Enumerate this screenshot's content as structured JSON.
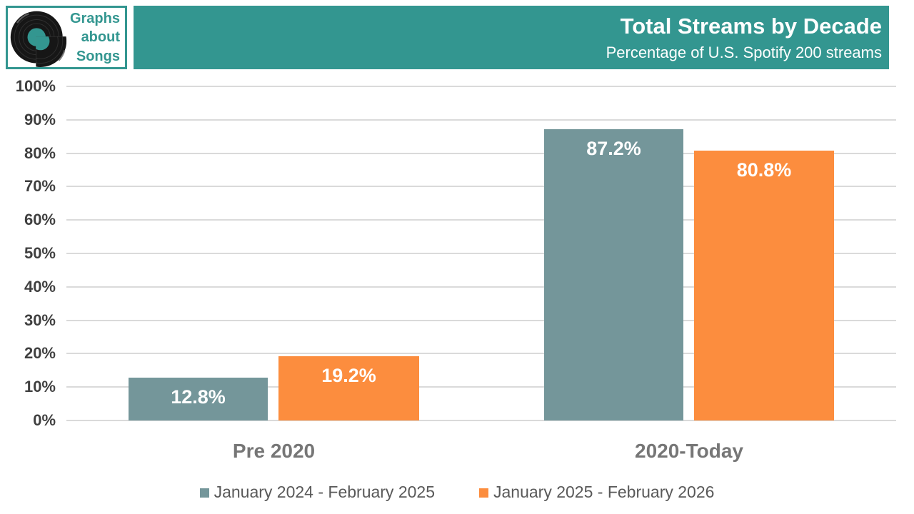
{
  "logo": {
    "line1": "Graphs",
    "line2": "about",
    "line3": "Songs"
  },
  "header": {
    "title": "Total Streams by Decade",
    "subtitle": "Percentage of U.S. Spotify 200 streams"
  },
  "colors": {
    "teal": "#339690",
    "slate": "#74969A",
    "orange": "#FC8D3E",
    "grid": "#DADADA",
    "vinyl_black": "#161616",
    "value_label": "#FFFFFF"
  },
  "chart_data": {
    "type": "bar",
    "title": "Total Streams by Decade",
    "subtitle": "Percentage of U.S. Spotify 200 streams",
    "categories": [
      "Pre 2020",
      "2020-Today"
    ],
    "series": [
      {
        "name": "January 2024 - February 2025",
        "color": "#74969A",
        "values": [
          12.8,
          87.2
        ],
        "labels": [
          "12.8%",
          "87.2%"
        ]
      },
      {
        "name": "January 2025 - February 2026",
        "color": "#FC8D3E",
        "values": [
          19.2,
          80.8
        ],
        "labels": [
          "19.2%",
          "80.8%"
        ]
      }
    ],
    "xlabel": "",
    "ylabel": "",
    "ylim": [
      0,
      100
    ],
    "ytick_labels": [
      "0%",
      "10%",
      "20%",
      "30%",
      "40%",
      "50%",
      "60%",
      "70%",
      "80%",
      "90%",
      "100%"
    ],
    "grid": true,
    "legend_position": "bottom"
  }
}
